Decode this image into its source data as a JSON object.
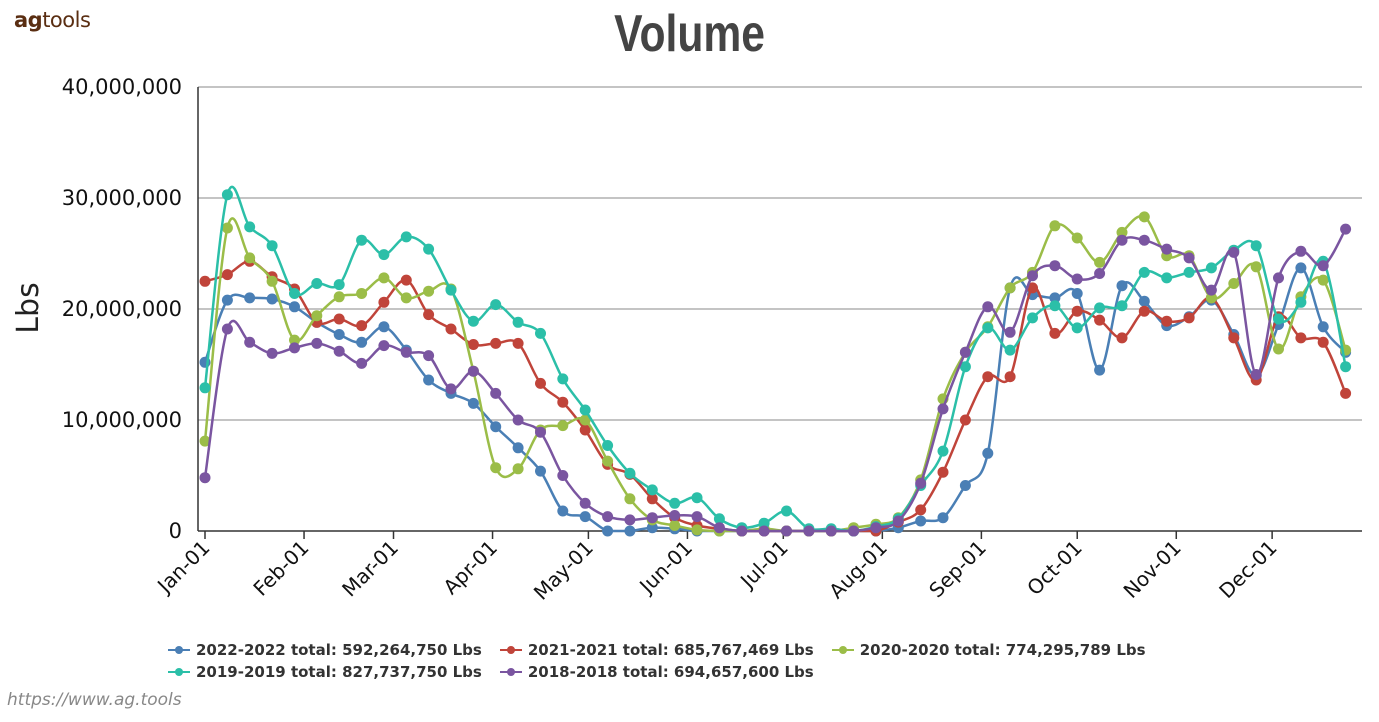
{
  "brand": {
    "bold": "ag",
    "rest": "tools"
  },
  "source_url": "https://www.ag.tools",
  "colors": {
    "s2022": "#4a7fb5",
    "s2021": "#c0443a",
    "s2020": "#9bbd48",
    "s2019": "#2bbfa8",
    "s2018": "#7a55a0",
    "grid": "#888888",
    "axis": "#333333"
  },
  "legend": [
    {
      "label": "2022-2022 total: 592,264,750 Lbs",
      "color": "#4a7fb5",
      "row": 0
    },
    {
      "label": "2021-2021 total: 685,767,469 Lbs",
      "color": "#c0443a",
      "row": 0
    },
    {
      "label": "2020-2020 total: 774,295,789 Lbs",
      "color": "#9bbd48",
      "row": 0
    },
    {
      "label": "2019-2019 total: 827,737,750 Lbs",
      "color": "#2bbfa8",
      "row": 1
    },
    {
      "label": "2018-2018 total: 694,657,600 Lbs",
      "color": "#7a55a0",
      "row": 1
    }
  ],
  "chart_data": {
    "type": "line",
    "title": "Volume",
    "xlabel": "",
    "ylabel": "Lbs",
    "ylim": [
      0,
      40000000
    ],
    "yticks": [
      0,
      10000000,
      20000000,
      30000000,
      40000000
    ],
    "ytick_labels": [
      "0",
      "10,000,000",
      "20,000,000",
      "30,000,000",
      "40,000,000"
    ],
    "xlim": [
      0,
      359
    ],
    "xticks": [
      0,
      31,
      59,
      90,
      120,
      151,
      181,
      212,
      243,
      273,
      304,
      334
    ],
    "xtick_labels": [
      "Jan-01",
      "Feb-01",
      "Mar-01",
      "Apr-01",
      "May-01",
      "Jun-01",
      "Jul-01",
      "Aug-01",
      "Sep-01",
      "Oct-01",
      "Nov-01",
      "Dec-01"
    ],
    "x_unit": "day of year (0 = Jan-01)",
    "x": [
      0,
      7,
      14,
      21,
      28,
      35,
      42,
      49,
      56,
      63,
      70,
      77,
      84,
      91,
      98,
      105,
      112,
      119,
      126,
      133,
      140,
      147,
      154,
      161,
      168,
      175,
      182,
      189,
      196,
      203,
      210,
      217,
      224,
      231,
      238,
      245,
      252,
      259,
      266,
      273,
      280,
      287,
      294,
      301,
      308,
      315,
      322,
      329,
      336,
      343,
      350,
      357
    ],
    "series": [
      {
        "name": "2022-2022",
        "color": "#4a7fb5",
        "values": [
          15200000,
          20800000,
          21000000,
          20900000,
          20200000,
          18800000,
          17700000,
          17000000,
          18400000,
          16300000,
          13600000,
          12400000,
          11500000,
          9400000,
          7500000,
          5400000,
          1800000,
          1300000,
          0,
          0,
          300000,
          200000,
          0,
          0,
          0,
          0,
          0,
          0,
          0,
          0,
          0,
          300000,
          900000,
          1200000,
          4100000,
          7000000,
          21900000,
          21300000,
          21000000,
          21400000,
          14500000,
          22100000,
          20700000,
          18500000,
          19300000,
          20800000,
          17700000,
          14000000,
          18600000,
          23700000,
          18400000,
          16100000
        ]
      },
      {
        "name": "2021-2021",
        "color": "#c0443a",
        "values": [
          22500000,
          23100000,
          24300000,
          22900000,
          21800000,
          18800000,
          19100000,
          18500000,
          20600000,
          22600000,
          19500000,
          18200000,
          16800000,
          16900000,
          16900000,
          13300000,
          11600000,
          9100000,
          6000000,
          5100000,
          2900000,
          1200000,
          500000,
          200000,
          0,
          0,
          0,
          0,
          0,
          0,
          0,
          800000,
          1900000,
          5300000,
          10000000,
          13900000,
          13900000,
          21900000,
          17800000,
          19800000,
          19000000,
          17400000,
          19800000,
          18900000,
          19200000,
          21000000,
          17400000,
          13600000,
          19300000,
          17400000,
          17000000,
          12400000
        ]
      },
      {
        "name": "2020-2020",
        "color": "#9bbd48",
        "values": [
          8100000,
          27300000,
          24600000,
          22500000,
          17200000,
          19400000,
          21100000,
          21400000,
          22800000,
          21000000,
          21600000,
          21800000,
          14400000,
          5700000,
          5600000,
          9100000,
          9500000,
          10000000,
          6300000,
          2900000,
          1000000,
          500000,
          100000,
          0,
          0,
          200000,
          0,
          0,
          0,
          300000,
          600000,
          1200000,
          4600000,
          11900000,
          16100000,
          18400000,
          21900000,
          23300000,
          27500000,
          26400000,
          24200000,
          26900000,
          28300000,
          24800000,
          24800000,
          21000000,
          22300000,
          23800000,
          16400000,
          21100000,
          22600000,
          16300000
        ]
      },
      {
        "name": "2019-2019",
        "color": "#2bbfa8",
        "values": [
          12900000,
          30300000,
          27400000,
          25700000,
          21400000,
          22300000,
          22200000,
          26200000,
          24900000,
          26500000,
          25400000,
          21700000,
          18900000,
          20400000,
          18800000,
          17800000,
          13700000,
          10900000,
          7700000,
          5200000,
          3700000,
          2500000,
          3000000,
          1100000,
          300000,
          700000,
          1800000,
          200000,
          200000,
          0,
          400000,
          1100000,
          4100000,
          7200000,
          14800000,
          18300000,
          16300000,
          19200000,
          20300000,
          18300000,
          20100000,
          20300000,
          23300000,
          22800000,
          23300000,
          23700000,
          25300000,
          25700000,
          19100000,
          20600000,
          24300000,
          14800000
        ]
      },
      {
        "name": "2018-2018",
        "color": "#7a55a0",
        "values": [
          4800000,
          18200000,
          17000000,
          16000000,
          16500000,
          16900000,
          16200000,
          15100000,
          16700000,
          16100000,
          15800000,
          12800000,
          14400000,
          12400000,
          10000000,
          8900000,
          5000000,
          2500000,
          1300000,
          1000000,
          1200000,
          1400000,
          1300000,
          300000,
          0,
          0,
          0,
          0,
          0,
          0,
          300000,
          900000,
          4300000,
          11000000,
          16100000,
          20200000,
          17900000,
          23000000,
          23900000,
          22700000,
          23200000,
          26200000,
          26200000,
          25400000,
          24600000,
          21700000,
          25100000,
          14100000,
          22800000,
          25200000,
          23900000,
          27200000
        ]
      }
    ]
  }
}
